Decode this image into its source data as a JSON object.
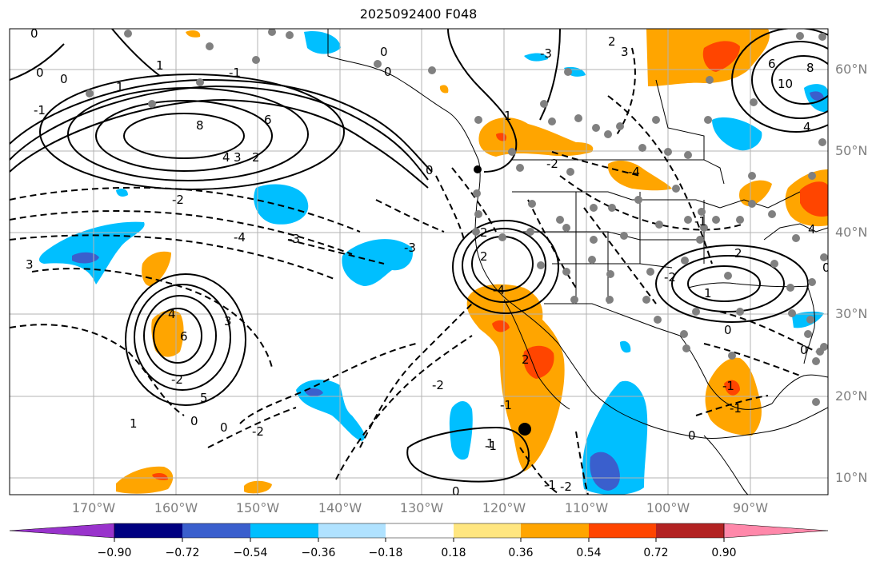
{
  "title": "2025092400 F048",
  "lat_labels": [
    "60°N",
    "50°N",
    "40°N",
    "30°N",
    "20°N",
    "10°N"
  ],
  "lon_labels": [
    "170°W",
    "160°W",
    "150°W",
    "140°W",
    "130°W",
    "120°W",
    "110°W",
    "100°W",
    "90°W"
  ],
  "colorbar": {
    "ticks": [
      "−0.90",
      "−0.72",
      "−0.54",
      "−0.36",
      "−0.18",
      "0.18",
      "0.36",
      "0.54",
      "0.72",
      "0.90"
    ],
    "colors": [
      "#9933cc",
      "#000080",
      "#3a5fcd",
      "#00bfff",
      "#b0e2ff",
      "#ffffff",
      "#ffe680",
      "#ffa500",
      "#ff4500",
      "#b22222",
      "#ff88aa"
    ]
  },
  "contour_labels": [
    "0",
    "0",
    "0",
    "0",
    "0",
    "-1",
    "1",
    "-1",
    "1",
    "8",
    "6",
    "4",
    "3",
    "2",
    "-2",
    "-3",
    "-4",
    "3",
    "4",
    "6",
    "5",
    "1",
    "-2",
    "0",
    "0",
    "-2",
    "-1",
    "1",
    "0",
    "3",
    "2",
    "2",
    "-4",
    "-3",
    "2",
    "-2",
    "-1",
    "-2",
    "-1",
    "2",
    "-4",
    "-1",
    "0",
    "0",
    "0",
    "6",
    "8",
    "10",
    "4",
    "4",
    "2",
    "0",
    "-1",
    "-1",
    "1",
    "-2",
    "-2",
    "-3",
    "1",
    "3",
    "0"
  ],
  "shading_colors": {
    "light_blue": "#00bfff",
    "blue": "#3a5fcd",
    "orange": "#ffa500",
    "red": "#ff4500",
    "dark_red": "#b22222"
  }
}
